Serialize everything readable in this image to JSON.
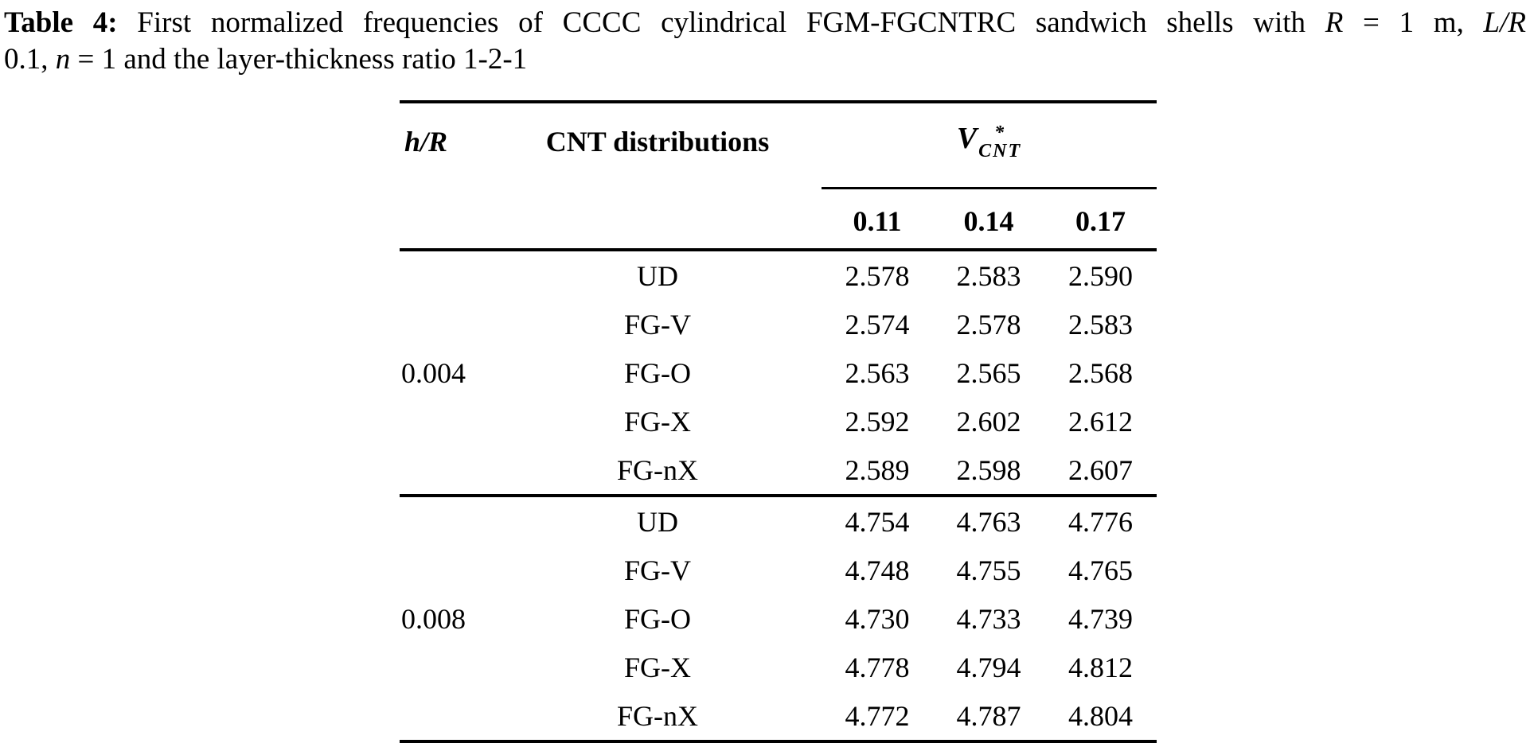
{
  "colors": {
    "text": "#000000",
    "background": "#ffffff",
    "rule": "#000000"
  },
  "caption": {
    "line1_segments": [
      {
        "text": "Table 4:",
        "style": "bold"
      },
      {
        "text": " First normalized frequencies of CCCC cylindrical FGM-FGCNTRC sandwich shells with ",
        "style": "normal"
      },
      {
        "text": "R",
        "style": "italic"
      },
      {
        "text": " = 1 m, ",
        "style": "normal"
      },
      {
        "text": "L/R",
        "style": "italic"
      }
    ],
    "line2_segments": [
      {
        "text": "0.1, ",
        "style": "normal"
      },
      {
        "text": "n",
        "style": "italic"
      },
      {
        "text": " = 1 and the layer-thickness ratio 1-2-1",
        "style": "normal"
      }
    ]
  },
  "table": {
    "header": {
      "hr": "h/R",
      "cnt": "CNT distributions",
      "v_base": "V",
      "v_sup": "*",
      "v_sub": "CNT"
    },
    "subheader": [
      "0.11",
      "0.14",
      "0.17"
    ],
    "groups": [
      {
        "label": "0.004",
        "rows": [
          {
            "dist": "UD",
            "values": [
              "2.578",
              "2.583",
              "2.590"
            ]
          },
          {
            "dist": "FG-V",
            "values": [
              "2.574",
              "2.578",
              "2.583"
            ]
          },
          {
            "dist": "FG-O",
            "values": [
              "2.563",
              "2.565",
              "2.568"
            ]
          },
          {
            "dist": "FG-X",
            "values": [
              "2.592",
              "2.602",
              "2.612"
            ]
          },
          {
            "dist": "FG-nX",
            "values": [
              "2.589",
              "2.598",
              "2.607"
            ]
          }
        ]
      },
      {
        "label": "0.008",
        "rows": [
          {
            "dist": "UD",
            "values": [
              "4.754",
              "4.763",
              "4.776"
            ]
          },
          {
            "dist": "FG-V",
            "values": [
              "4.748",
              "4.755",
              "4.765"
            ]
          },
          {
            "dist": "FG-O",
            "values": [
              "4.730",
              "4.733",
              "4.739"
            ]
          },
          {
            "dist": "FG-X",
            "values": [
              "4.778",
              "4.794",
              "4.812"
            ]
          },
          {
            "dist": "FG-nX",
            "values": [
              "4.772",
              "4.787",
              "4.804"
            ]
          }
        ]
      }
    ]
  }
}
